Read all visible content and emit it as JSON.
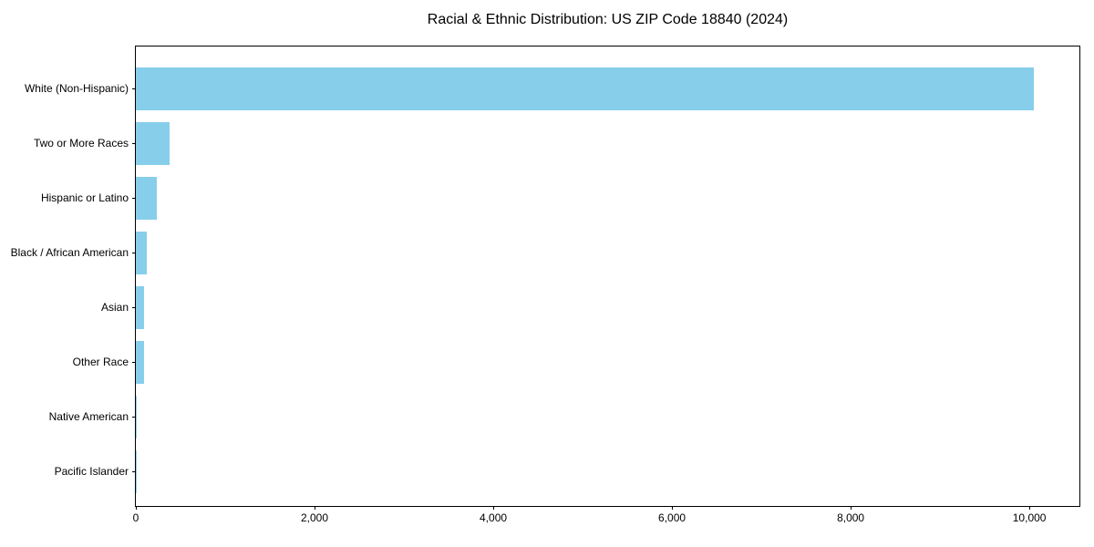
{
  "figure": {
    "background": "#ffffff"
  },
  "chart_data": {
    "type": "bar",
    "orientation": "horizontal",
    "title": "Racial & Ethnic Distribution: US ZIP Code 18840 (2024)",
    "categories": [
      "White (Non-Hispanic)",
      "Two or More Races",
      "Hispanic or Latino",
      "Black / African American",
      "Asian",
      "Other Race",
      "Native American",
      "Pacific Islander"
    ],
    "values": [
      10050,
      375,
      230,
      120,
      95,
      90,
      10,
      3
    ],
    "bar_color": "#87CEEB",
    "axis_color": "#000000",
    "text_color": "#000000",
    "xlim": [
      0,
      10560
    ],
    "x_ticks": [
      0,
      2000,
      4000,
      6000,
      8000,
      10000
    ],
    "x_tick_labels": [
      "0",
      "2,000",
      "4,000",
      "6,000",
      "8,000",
      "10,000"
    ],
    "xlabel": "",
    "ylabel": "",
    "grid": false,
    "legend": null
  }
}
